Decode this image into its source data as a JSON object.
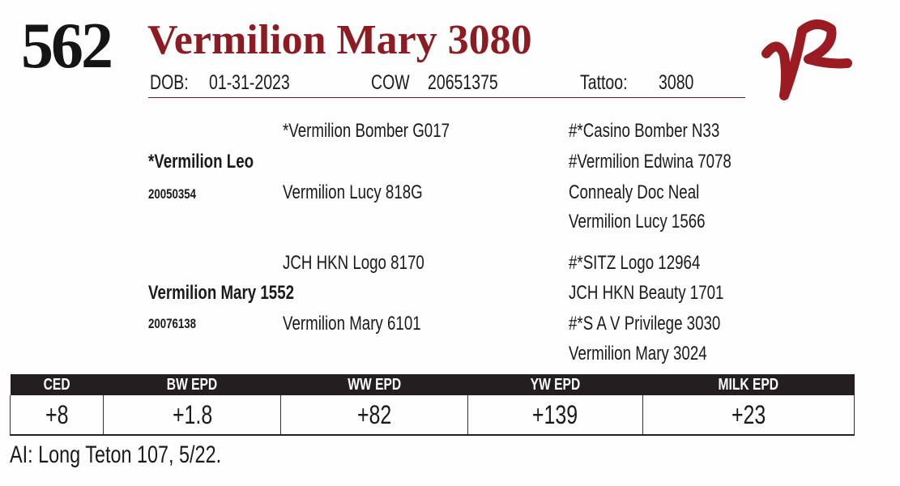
{
  "header": {
    "lot_number": "562",
    "name": "Vermilion Mary 3080",
    "dob_label": "DOB:",
    "dob": "01-31-2023",
    "cow_label": "COW",
    "registration": "20651375",
    "tattoo_label": "Tattoo:",
    "tattoo": "3080",
    "logo_text": "VR",
    "accent_color": "#8c1c22"
  },
  "pedigree": {
    "sire": {
      "name": "*Vermilion Leo",
      "reg": "20050354",
      "sire": "*Vermilion Bomber G017",
      "dam": "Vermilion Lucy 818G",
      "ss": "#*Casino Bomber N33",
      "sd": "#Vermilion Edwina 7078",
      "ds": "Connealy Doc Neal",
      "dd": "Vermilion Lucy 1566"
    },
    "dam": {
      "name": "Vermilion Mary 1552",
      "reg": "20076138",
      "sire": "JCH HKN Logo 8170",
      "dam": "Vermilion Mary 6101",
      "ss": "#*SITZ Logo 12964",
      "sd": "JCH HKN Beauty 1701",
      "ds": "#*S A V Privilege 3030",
      "dd": "Vermilion Mary 3024"
    }
  },
  "epd": {
    "headers": [
      "CED",
      "BW EPD",
      "WW EPD",
      "YW EPD",
      "MILK EPD"
    ],
    "values": [
      "+8",
      "+1.8",
      "+82",
      "+139",
      "+23"
    ]
  },
  "footnote": "AI: Long Teton 107, 5/22."
}
